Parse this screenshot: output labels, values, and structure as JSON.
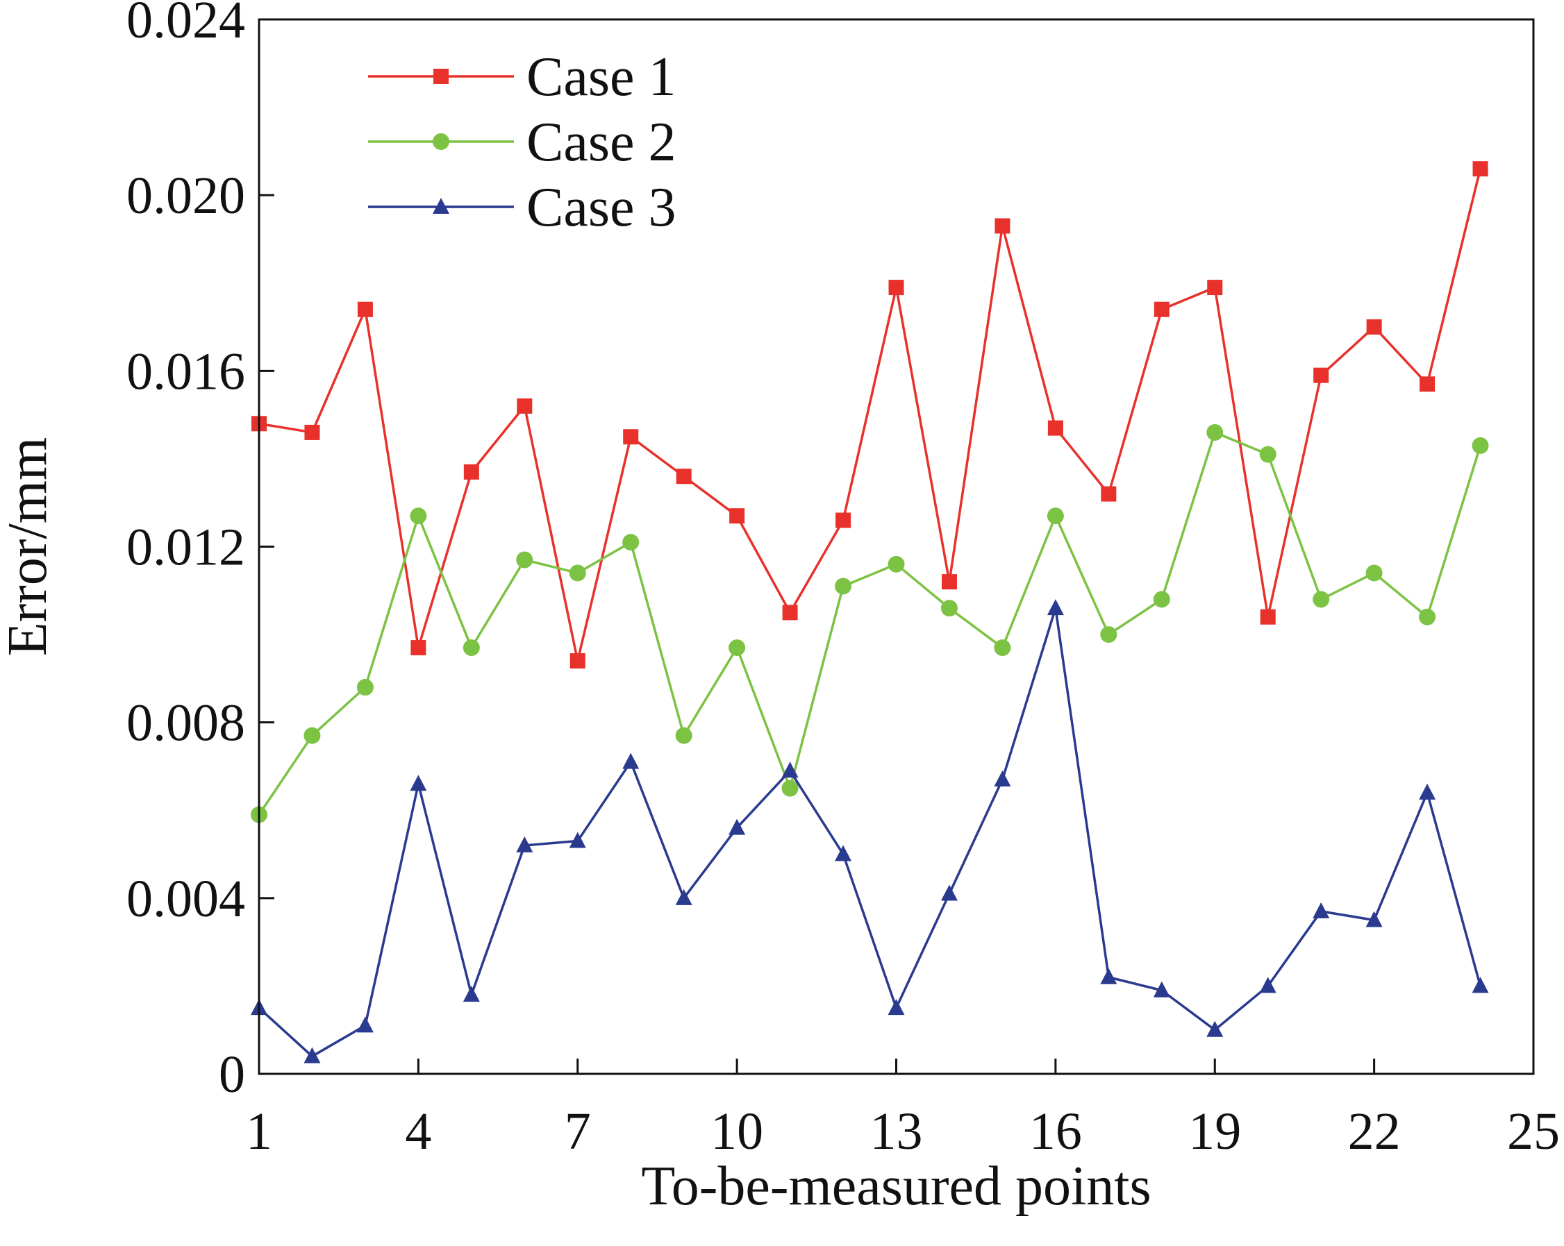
{
  "chart_data": {
    "type": "line",
    "xlabel": "To-be-measured points",
    "ylabel": "Error/mm",
    "xlim": [
      1,
      25
    ],
    "ylim": [
      0,
      0.024
    ],
    "x_ticks": [
      1,
      4,
      7,
      10,
      13,
      16,
      19,
      22,
      25
    ],
    "x_tick_labels": [
      "1",
      "4",
      "7",
      "10",
      "13",
      "16",
      "19",
      "22",
      "25"
    ],
    "y_ticks": [
      0,
      0.004,
      0.008,
      0.012,
      0.016,
      0.02,
      0.024
    ],
    "y_tick_labels": [
      "0",
      "0.004",
      "0.008",
      "0.012",
      "0.016",
      "0.020",
      "0.024"
    ],
    "grid": false,
    "legend_position": "top-left",
    "x": [
      1,
      2,
      3,
      4,
      5,
      6,
      7,
      8,
      9,
      10,
      11,
      12,
      13,
      14,
      15,
      16,
      17,
      18,
      19,
      20,
      21,
      22,
      23,
      24
    ],
    "series": [
      {
        "name": "Case 1",
        "color": "#e8312a",
        "marker": "square",
        "values": [
          0.0148,
          0.0146,
          0.0174,
          0.0097,
          0.0137,
          0.0152,
          0.0094,
          0.0145,
          0.0136,
          0.0127,
          0.0105,
          0.0126,
          0.0179,
          0.0112,
          0.0193,
          0.0147,
          0.0132,
          0.0174,
          0.0179,
          0.0104,
          0.0159,
          0.017,
          0.0157,
          0.0206
        ]
      },
      {
        "name": "Case 2",
        "color": "#7cc243",
        "marker": "circle",
        "values": [
          0.0059,
          0.0077,
          0.0088,
          0.0127,
          0.0097,
          0.0117,
          0.0114,
          0.0121,
          0.0077,
          0.0097,
          0.0065,
          0.0111,
          0.0116,
          0.0106,
          0.0097,
          0.0127,
          0.01,
          0.0108,
          0.0146,
          0.0141,
          0.0108,
          0.0114,
          0.0104,
          0.0143
        ]
      },
      {
        "name": "Case 3",
        "color": "#2a3a8f",
        "marker": "triangle",
        "values": [
          0.0015,
          0.0004,
          0.0011,
          0.0066,
          0.0018,
          0.0052,
          0.0053,
          0.0071,
          0.004,
          0.0056,
          0.0069,
          0.005,
          0.0015,
          0.0041,
          0.0067,
          0.0106,
          0.0022,
          0.0019,
          0.001,
          0.002,
          0.0037,
          0.0035,
          0.0064,
          0.002
        ]
      }
    ]
  }
}
